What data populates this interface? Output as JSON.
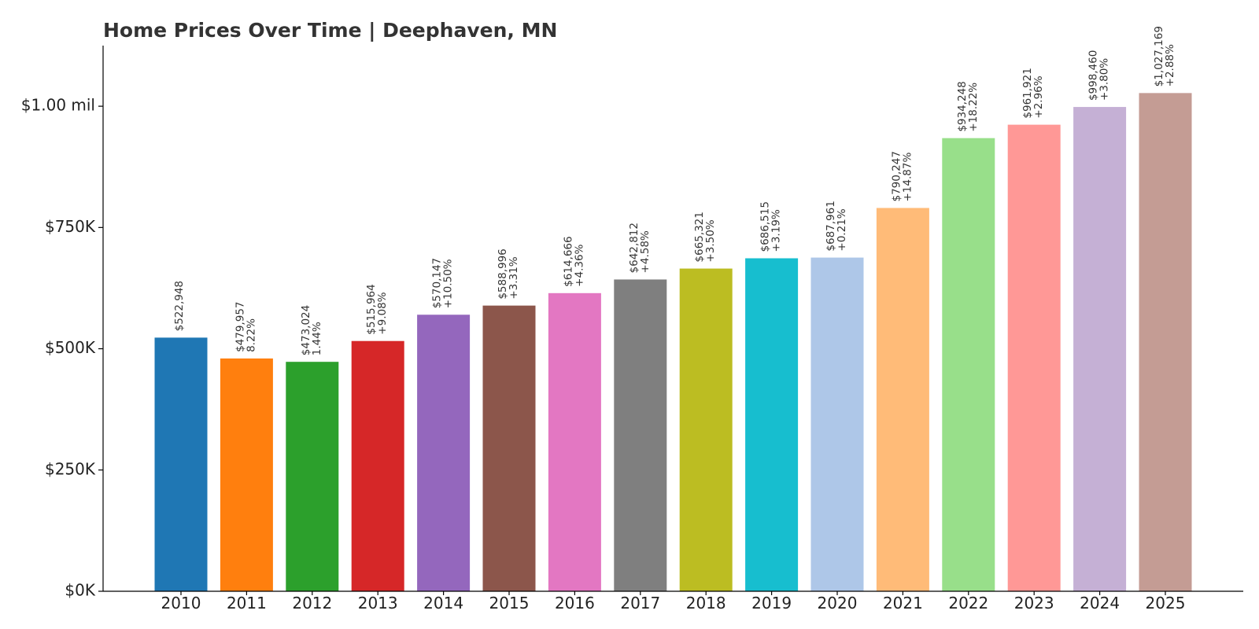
{
  "chart_data": {
    "type": "bar",
    "title": "Home Prices Over Time | Deephaven, MN",
    "xlabel": "",
    "ylabel": "",
    "ylim": [
      0,
      1125000
    ],
    "yticks": [
      {
        "value": 0,
        "label": "$0K"
      },
      {
        "value": 250000,
        "label": "$250K"
      },
      {
        "value": 500000,
        "label": "$500K"
      },
      {
        "value": 750000,
        "label": "$750K"
      },
      {
        "value": 1000000,
        "label": "$1.00 mil"
      }
    ],
    "categories": [
      "2010",
      "2011",
      "2012",
      "2013",
      "2014",
      "2015",
      "2016",
      "2017",
      "2018",
      "2019",
      "2020",
      "2021",
      "2022",
      "2023",
      "2024",
      "2025"
    ],
    "values": [
      522948,
      479957,
      473024,
      515964,
      570147,
      588996,
      614666,
      642812,
      665321,
      686515,
      687961,
      790247,
      934248,
      961921,
      998460,
      1027169
    ],
    "value_labels": [
      "$522,948",
      "$479,957",
      "$473,024",
      "$515,964",
      "$570,147",
      "$588,996",
      "$614,666",
      "$642,812",
      "$665,321",
      "$686,515",
      "$687,961",
      "$790,247",
      "$934,248",
      "$961,921",
      "$998,460",
      "$1,027,169"
    ],
    "change_labels": [
      "",
      "8.22%",
      "1.44%",
      "+9.08%",
      "+10.50%",
      "+3.31%",
      "+4.36%",
      "+4.58%",
      "+3.50%",
      "+3.19%",
      "+0.21%",
      "+14.87%",
      "+18.22%",
      "+2.96%",
      "+3.80%",
      "+2.88%"
    ],
    "colors": [
      "#1f77b4",
      "#ff7f0e",
      "#2ca02c",
      "#d62728",
      "#9467bd",
      "#8c564b",
      "#e377c2",
      "#7f7f7f",
      "#bcbd22",
      "#17becf",
      "#aec7e8",
      "#ffbb78",
      "#98df8a",
      "#ff9896",
      "#c5b0d5",
      "#c49c94"
    ],
    "grid": false,
    "legend": "none"
  }
}
